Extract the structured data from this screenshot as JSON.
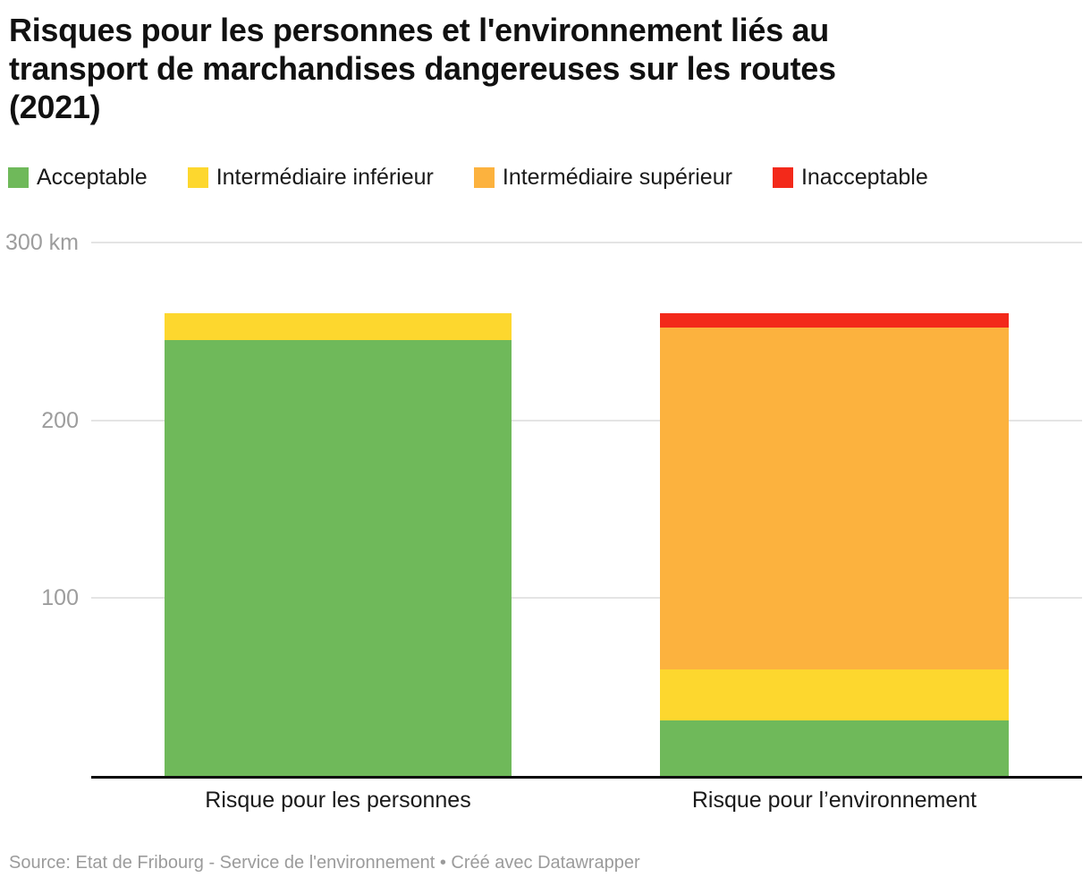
{
  "title": "Risques pour les personnes et l'environnement liés au\ntransport de marchandises dangereuses sur les routes\n(2021)",
  "legend": [
    {
      "label": "Acceptable",
      "color": "#6fb95a"
    },
    {
      "label": "Intermédiaire inférieur",
      "color": "#fdd72e"
    },
    {
      "label": "Intermédiaire supérieur",
      "color": "#fcb23e"
    },
    {
      "label": "Inacceptable",
      "color": "#f3291a"
    }
  ],
  "chart_data": {
    "type": "bar",
    "stacked": true,
    "unit": "km",
    "title": "Risques pour les personnes et l'environnement liés au transport de marchandises dangereuses sur les routes (2021)",
    "categories": [
      "Risque pour les personnes",
      "Risque pour l’environnement"
    ],
    "series": [
      {
        "name": "Acceptable",
        "color": "#6fb95a",
        "values": [
          245,
          31
        ]
      },
      {
        "name": "Intermédiaire inférieur",
        "color": "#fdd72e",
        "values": [
          15,
          29
        ]
      },
      {
        "name": "Intermédiaire supérieur",
        "color": "#fcb23e",
        "values": [
          0,
          192
        ]
      },
      {
        "name": "Inacceptable",
        "color": "#f3291a",
        "values": [
          0,
          8
        ]
      }
    ],
    "totals": [
      260,
      260
    ],
    "ylim": [
      0,
      300
    ],
    "yticks": [
      {
        "value": 100,
        "label": "100"
      },
      {
        "value": 200,
        "label": "200"
      },
      {
        "value": 300,
        "label": "300 km"
      }
    ],
    "grid": true,
    "legend_position": "top"
  },
  "footer": "Source: Etat de Fribourg - Service de l'environnement • Créé avec Datawrapper"
}
